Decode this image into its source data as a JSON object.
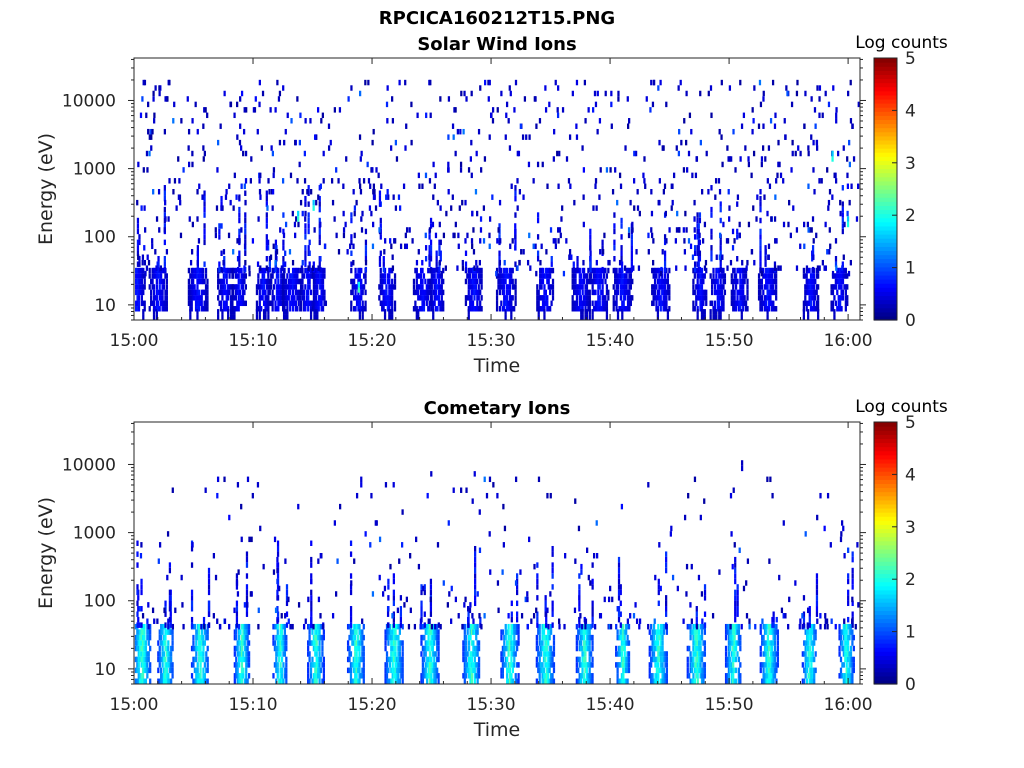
{
  "figure": {
    "title": "RPCICA160212T15.PNG"
  },
  "chart_data": [
    {
      "type": "heatmap",
      "title": "Solar Wind Ions",
      "xlabel": "Time",
      "ylabel": "Energy (eV)",
      "x_tick_labels": [
        "15:00",
        "15:10",
        "15:20",
        "15:30",
        "15:40",
        "15:50",
        "16:00"
      ],
      "x_range": [
        "15:00",
        "16:01"
      ],
      "y_scale": "log",
      "y_tick_values": [
        10,
        100,
        1000,
        10000
      ],
      "y_tick_labels": [
        "10",
        "100",
        "1000",
        "10000"
      ],
      "y_range": [
        6,
        42000
      ],
      "colorbar": {
        "label": "Log counts",
        "range": [
          0,
          5
        ],
        "tick_labels": [
          "0",
          "1",
          "2",
          "3",
          "4",
          "5"
        ],
        "colormap": "jet"
      },
      "dominant_energy_band_eV": [
        8,
        30
      ],
      "band_bursts_minutes": [
        0.2,
        2.0,
        5.3,
        7.6,
        8.8,
        10.8,
        12.0,
        13.2,
        14.5,
        15.5,
        18.8,
        21.2,
        24.2,
        25.4,
        28.5,
        31.2,
        34.5,
        37.5,
        39.0,
        41.0,
        44.2,
        47.5,
        49.0,
        50.8,
        53.2,
        56.8,
        59.2
      ],
      "band_level_log_counts": 0.8,
      "sparse_counts_energy_range_eV": [
        30,
        20000
      ],
      "notable_points": [
        {
          "t": "15:13.7",
          "energy": 180,
          "log_counts": 2.1
        },
        {
          "t": "15:15.0",
          "energy": 250,
          "log_counts": 2.0
        },
        {
          "t": "15:18.8",
          "energy": 17,
          "log_counts": 2.2
        },
        {
          "t": "15:58.6",
          "energy": 1500,
          "log_counts": 2.0
        },
        {
          "t": "15:59.9",
          "energy": 160,
          "log_counts": 2.0
        }
      ]
    },
    {
      "type": "heatmap",
      "title": "Cometary Ions",
      "xlabel": "Time",
      "ylabel": "Energy (eV)",
      "x_tick_labels": [
        "15:00",
        "15:10",
        "15:20",
        "15:30",
        "15:40",
        "15:50",
        "16:00"
      ],
      "x_range": [
        "15:00",
        "16:01"
      ],
      "y_scale": "log",
      "y_tick_values": [
        10,
        100,
        1000,
        10000
      ],
      "y_tick_labels": [
        "10",
        "100",
        "1000",
        "10000"
      ],
      "y_range": [
        6,
        42000
      ],
      "colorbar": {
        "label": "Log counts",
        "range": [
          0,
          5
        ],
        "tick_labels": [
          "0",
          "1",
          "2",
          "3",
          "4",
          "5"
        ],
        "colormap": "jet"
      },
      "dominant_energy_band_eV": [
        6,
        40
      ],
      "band_bursts_minutes": [
        0.6,
        2.6,
        5.5,
        9.0,
        12.2,
        15.2,
        18.6,
        21.8,
        24.8,
        28.3,
        31.5,
        34.5,
        37.8,
        41.0,
        44.0,
        47.2,
        50.3,
        53.3,
        56.7,
        59.8
      ],
      "band_peak_log_counts": 2.4,
      "sparse_counts_energy_range_eV": [
        40,
        8000
      ],
      "notable_points": [
        {
          "t": "15:19.0",
          "energy": 5000,
          "log_counts": 0.5
        },
        {
          "t": "15:51.0",
          "energy": 8000,
          "log_counts": 0.4
        },
        {
          "t": "15:37.5",
          "energy": 250,
          "log_counts": 0.8
        }
      ]
    }
  ]
}
